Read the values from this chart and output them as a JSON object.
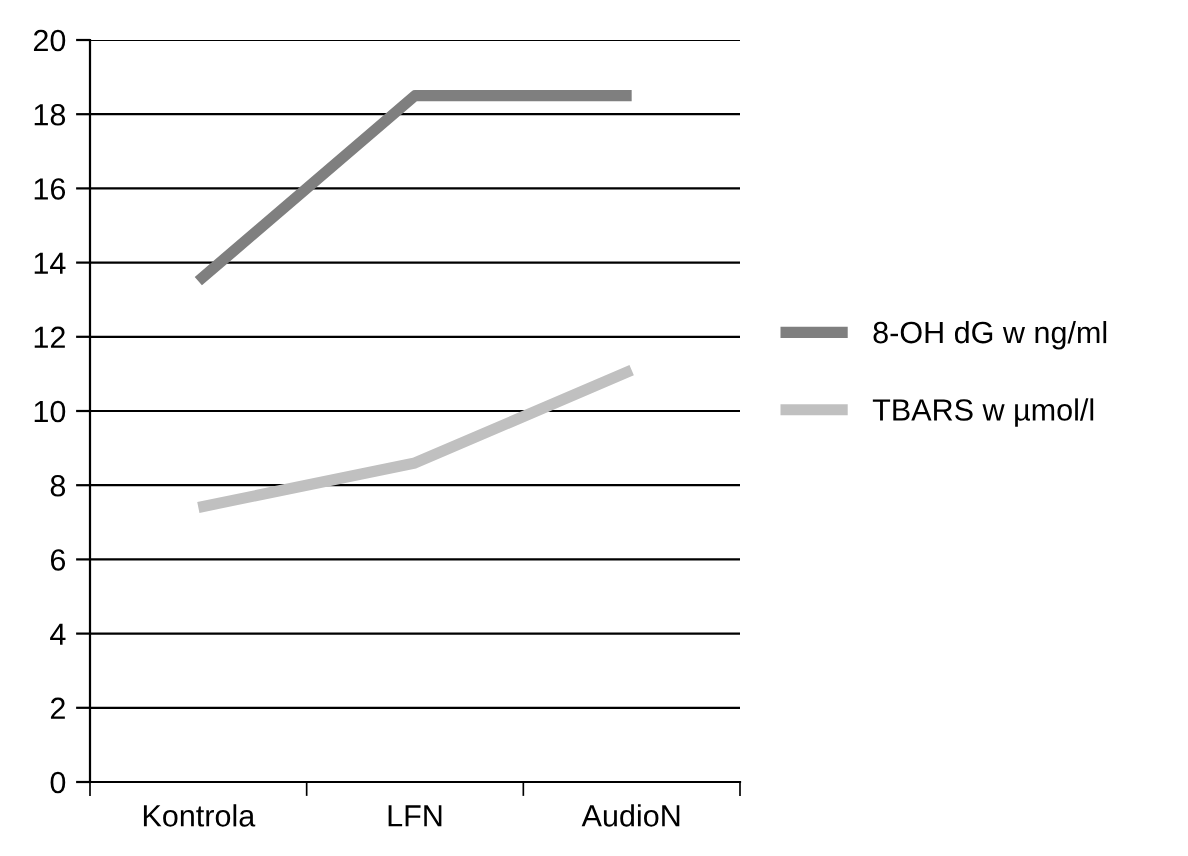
{
  "chart_data": {
    "type": "line",
    "categories": [
      "Kontrola",
      "LFN",
      "AudioN"
    ],
    "series": [
      {
        "name": "8-OH dG w ng/ml",
        "color": "#7f7f7f",
        "values": [
          13.5,
          18.5,
          18.5
        ]
      },
      {
        "name": "TBARS w µmol/l",
        "color": "#c0c0c0",
        "values": [
          7.4,
          8.6,
          11.1
        ]
      }
    ],
    "ylim": [
      0,
      20
    ],
    "yticks": [
      0,
      2,
      4,
      6,
      8,
      10,
      12,
      14,
      16,
      18,
      20
    ],
    "grid": "y",
    "legend": "right",
    "marker": "none",
    "line_style": "solid"
  }
}
